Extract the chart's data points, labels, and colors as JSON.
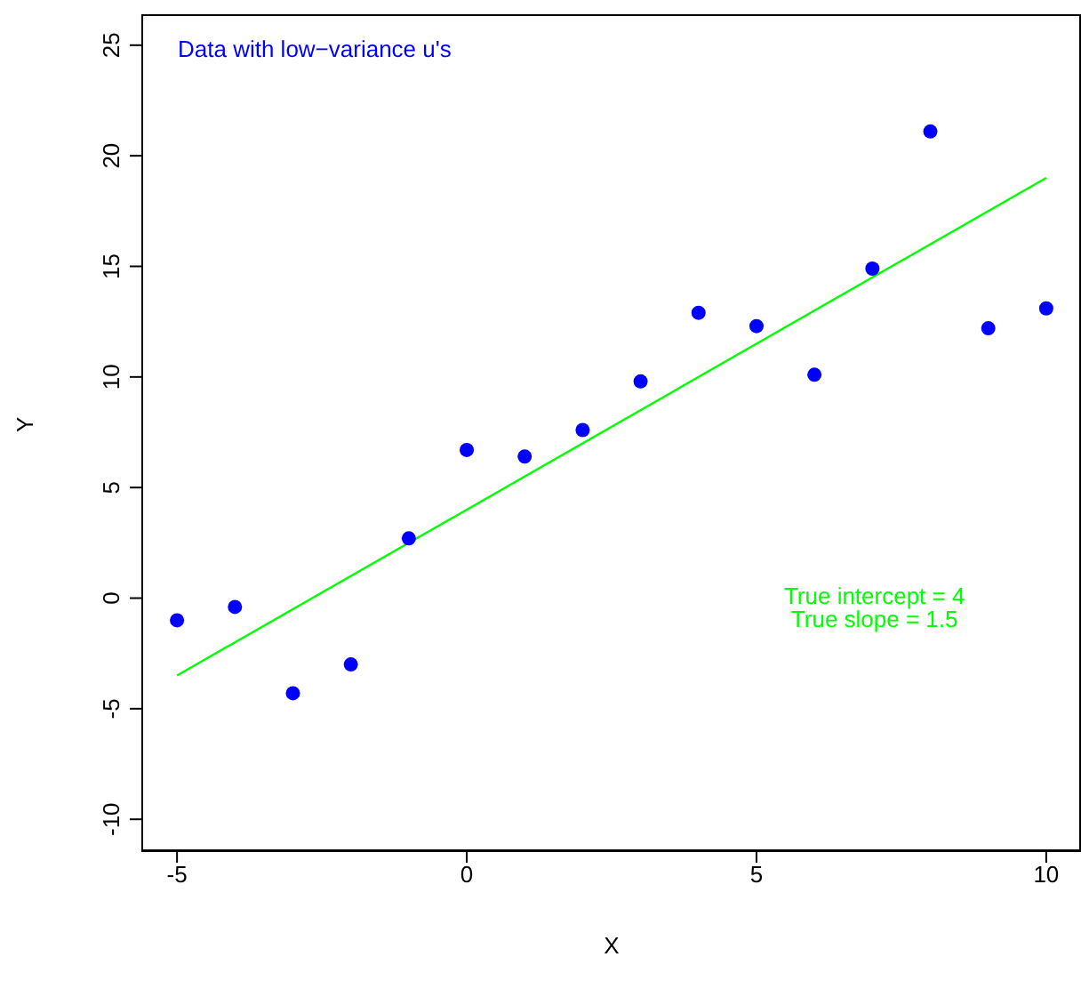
{
  "chart_data": {
    "type": "scatter",
    "xlabel": "X",
    "ylabel": "Y",
    "x": [
      -5,
      -4,
      -3,
      -2,
      -1,
      0,
      1,
      2,
      3,
      4,
      5,
      6,
      7,
      8,
      9,
      10
    ],
    "series": [
      {
        "color": "#0000ff",
        "marker": "circle",
        "values": [
          -1.0,
          -0.4,
          -4.3,
          -3.0,
          2.7,
          6.7,
          6.4,
          7.6,
          9.8,
          12.9,
          12.3,
          10.1,
          14.9,
          21.1,
          12.2,
          13.1
        ]
      },
      {
        "type": "line",
        "color": "#00ff00",
        "x": [
          -5,
          10
        ],
        "values": [
          -3.5,
          19
        ]
      }
    ],
    "xlim": [
      -5.6,
      10.6
    ],
    "xticks": [
      -5,
      0,
      5,
      10
    ],
    "ylim": [
      -11.4,
      26.4
    ],
    "yticks": [
      -10,
      -5,
      0,
      5,
      10,
      15,
      20,
      25
    ],
    "grid": false,
    "annotations": [
      "Data with low−variance u's",
      "True intercept = 4",
      "True slope = 1.5"
    ]
  }
}
